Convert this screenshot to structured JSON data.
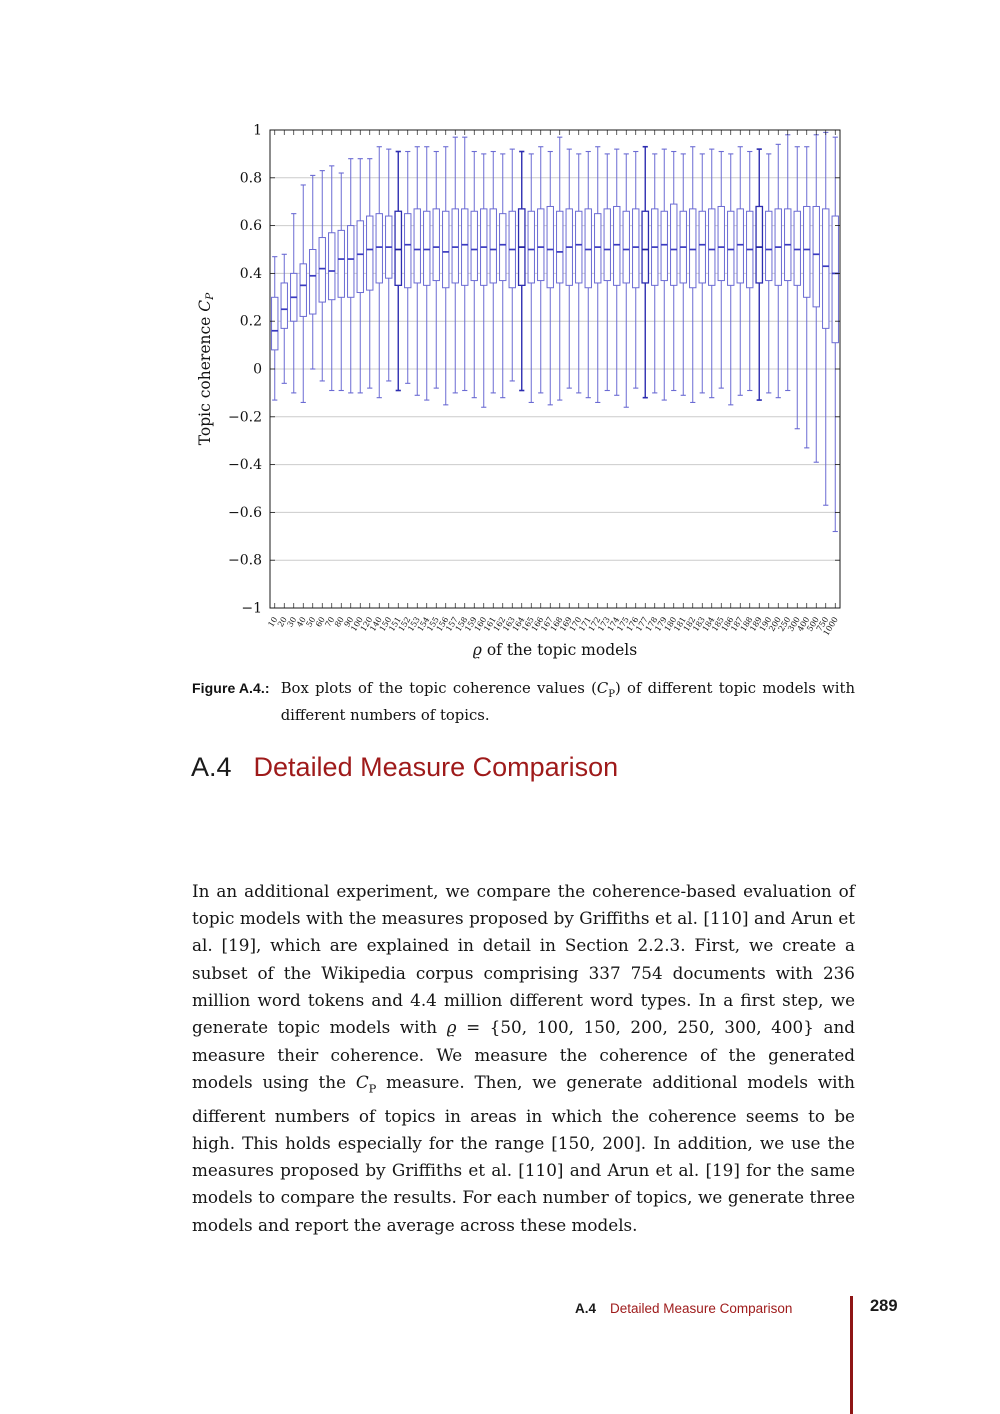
{
  "chart_data": {
    "type": "boxplot",
    "title": "",
    "xlabel": "ϱ of the topic models",
    "ylabel": "Topic coherence C_P",
    "xlabel_parts": {
      "sym": "ϱ",
      "rest": " of the topic models"
    },
    "ylabel_parts": {
      "prefix": "Topic coherence ",
      "sym": "C",
      "sub": "P"
    },
    "ylim": [
      -1,
      1
    ],
    "grid": true,
    "ytick_values": [
      1,
      0.8,
      0.6,
      0.4,
      0.2,
      0,
      -0.2,
      -0.4,
      -0.6,
      -0.8,
      -1
    ],
    "ytick_labels": [
      "1",
      "0.8",
      "0.6",
      "0.4",
      "0.2",
      "0",
      "−0.2",
      "−0.4",
      "−0.6",
      "−0.8",
      "−1"
    ],
    "categories": [
      "10",
      "20",
      "30",
      "40",
      "50",
      "60",
      "70",
      "80",
      "90",
      "100",
      "120",
      "140",
      "150",
      "151",
      "152",
      "153",
      "154",
      "155",
      "156",
      "157",
      "158",
      "159",
      "160",
      "161",
      "162",
      "163",
      "164",
      "165",
      "166",
      "167",
      "168",
      "169",
      "170",
      "171",
      "172",
      "173",
      "174",
      "175",
      "176",
      "177",
      "178",
      "179",
      "180",
      "181",
      "182",
      "183",
      "184",
      "185",
      "186",
      "187",
      "188",
      "189",
      "190",
      "200",
      "250",
      "300",
      "400",
      "500",
      "750",
      "1000"
    ],
    "boxes": [
      [
        -0.13,
        0.08,
        0.16,
        0.3,
        0.47
      ],
      [
        -0.06,
        0.17,
        0.25,
        0.36,
        0.48
      ],
      [
        -0.1,
        0.2,
        0.3,
        0.4,
        0.65
      ],
      [
        -0.14,
        0.22,
        0.35,
        0.44,
        0.77
      ],
      [
        0.0,
        0.23,
        0.39,
        0.5,
        0.81
      ],
      [
        -0.05,
        0.28,
        0.42,
        0.55,
        0.83
      ],
      [
        -0.09,
        0.29,
        0.41,
        0.57,
        0.85
      ],
      [
        -0.09,
        0.3,
        0.46,
        0.58,
        0.82
      ],
      [
        -0.1,
        0.3,
        0.46,
        0.6,
        0.88
      ],
      [
        -0.1,
        0.32,
        0.48,
        0.62,
        0.88
      ],
      [
        -0.08,
        0.33,
        0.5,
        0.64,
        0.88
      ],
      [
        -0.12,
        0.36,
        0.51,
        0.65,
        0.93
      ],
      [
        -0.05,
        0.38,
        0.51,
        0.64,
        0.92
      ],
      [
        -0.09,
        0.35,
        0.5,
        0.66,
        0.91
      ],
      [
        -0.06,
        0.34,
        0.52,
        0.65,
        0.91
      ],
      [
        -0.11,
        0.36,
        0.5,
        0.67,
        0.93
      ],
      [
        -0.13,
        0.35,
        0.5,
        0.66,
        0.93
      ],
      [
        -0.08,
        0.37,
        0.51,
        0.67,
        0.91
      ],
      [
        -0.15,
        0.34,
        0.49,
        0.66,
        0.93
      ],
      [
        -0.1,
        0.36,
        0.51,
        0.67,
        0.97
      ],
      [
        -0.09,
        0.35,
        0.52,
        0.67,
        0.97
      ],
      [
        -0.12,
        0.37,
        0.5,
        0.66,
        0.91
      ],
      [
        -0.16,
        0.35,
        0.51,
        0.67,
        0.9
      ],
      [
        -0.1,
        0.36,
        0.5,
        0.67,
        0.91
      ],
      [
        -0.12,
        0.37,
        0.52,
        0.65,
        0.9
      ],
      [
        -0.05,
        0.34,
        0.5,
        0.66,
        0.92
      ],
      [
        -0.09,
        0.35,
        0.51,
        0.67,
        0.91
      ],
      [
        -0.14,
        0.36,
        0.5,
        0.66,
        0.9
      ],
      [
        -0.1,
        0.37,
        0.51,
        0.67,
        0.93
      ],
      [
        -0.15,
        0.34,
        0.5,
        0.68,
        0.91
      ],
      [
        -0.13,
        0.36,
        0.49,
        0.66,
        0.97
      ],
      [
        -0.08,
        0.35,
        0.51,
        0.67,
        0.92
      ],
      [
        -0.1,
        0.36,
        0.52,
        0.66,
        0.9
      ],
      [
        -0.12,
        0.34,
        0.5,
        0.67,
        0.91
      ],
      [
        -0.14,
        0.36,
        0.51,
        0.65,
        0.93
      ],
      [
        -0.09,
        0.37,
        0.5,
        0.67,
        0.9
      ],
      [
        -0.11,
        0.35,
        0.52,
        0.68,
        0.92
      ],
      [
        -0.16,
        0.36,
        0.5,
        0.66,
        0.9
      ],
      [
        -0.08,
        0.34,
        0.51,
        0.67,
        0.91
      ],
      [
        -0.12,
        0.36,
        0.5,
        0.66,
        0.93
      ],
      [
        -0.1,
        0.35,
        0.51,
        0.67,
        0.9
      ],
      [
        -0.13,
        0.37,
        0.52,
        0.66,
        0.92
      ],
      [
        -0.09,
        0.35,
        0.5,
        0.69,
        0.91
      ],
      [
        -0.11,
        0.36,
        0.51,
        0.66,
        0.9
      ],
      [
        -0.14,
        0.34,
        0.5,
        0.67,
        0.93
      ],
      [
        -0.1,
        0.36,
        0.52,
        0.66,
        0.9
      ],
      [
        -0.12,
        0.35,
        0.5,
        0.67,
        0.92
      ],
      [
        -0.08,
        0.37,
        0.51,
        0.68,
        0.91
      ],
      [
        -0.15,
        0.35,
        0.5,
        0.66,
        0.9
      ],
      [
        -0.11,
        0.36,
        0.52,
        0.67,
        0.93
      ],
      [
        -0.09,
        0.34,
        0.5,
        0.66,
        0.91
      ],
      [
        -0.13,
        0.36,
        0.51,
        0.68,
        0.92
      ],
      [
        -0.1,
        0.37,
        0.5,
        0.66,
        0.9
      ],
      [
        -0.12,
        0.35,
        0.51,
        0.67,
        0.94
      ],
      [
        -0.09,
        0.37,
        0.52,
        0.67,
        0.98
      ],
      [
        -0.25,
        0.35,
        0.5,
        0.66,
        0.93
      ],
      [
        -0.33,
        0.3,
        0.5,
        0.68,
        0.93
      ],
      [
        -0.39,
        0.26,
        0.48,
        0.68,
        0.98
      ],
      [
        -0.57,
        0.17,
        0.43,
        0.67,
        0.99
      ],
      [
        -0.68,
        0.11,
        0.4,
        0.64,
        0.97
      ]
    ],
    "dark_indices": [
      13,
      26,
      39,
      51
    ],
    "legend": null,
    "colors": {
      "box": "#6b6bd3",
      "box_dark": "#2d2db0",
      "median": "#3a3ac0",
      "median_dark": "#1f1f9e",
      "grid": "#cccccc",
      "axis": "#1a1a1a"
    }
  },
  "caption": {
    "label": "Figure A.4.:",
    "seg1": "Box plots of the topic coherence values (",
    "math_sym": "C",
    "math_sub": "P",
    "seg2": ") of different topic models with different numbers of topics."
  },
  "section": {
    "number": "A.4",
    "title": "Detailed Measure Comparison",
    "paragraph": {
      "seg1": "In an additional experiment, we compare the coherence-based evaluation of topic models with the measures proposed by Griffiths et al. [110] and Arun et al. [19], which are explained in detail in Section 2.2.3. First, we create a subset of the Wikipedia corpus comprising 337 754 documents with 236 million word tokens and 4.4 million different word types. In a first step, we generate topic models with ",
      "rho": "ϱ",
      "eq": " = {50, 100, 150, 200, 250, 300, 400}",
      "seg2": " and measure their coherence. We measure the coherence of the generated models using the ",
      "cal_c": "C",
      "cal_c_sub": "P",
      "seg3": " measure. Then, we generate additional models with different numbers of topics in areas in which the coherence seems to be high. This holds especially for the range [150, 200]. In addition, we use the measures proposed by Griffiths et al. [110] and Arun et al. [19] for the same models to compare the results. For each number of topics, we generate three models and report the average across these models."
    }
  },
  "footer": {
    "section_number": "A.4",
    "section_title": "Detailed Measure Comparison",
    "page_number": "289",
    "accent_red": "#9e1a1a",
    "rule_red": "#8e1515"
  }
}
